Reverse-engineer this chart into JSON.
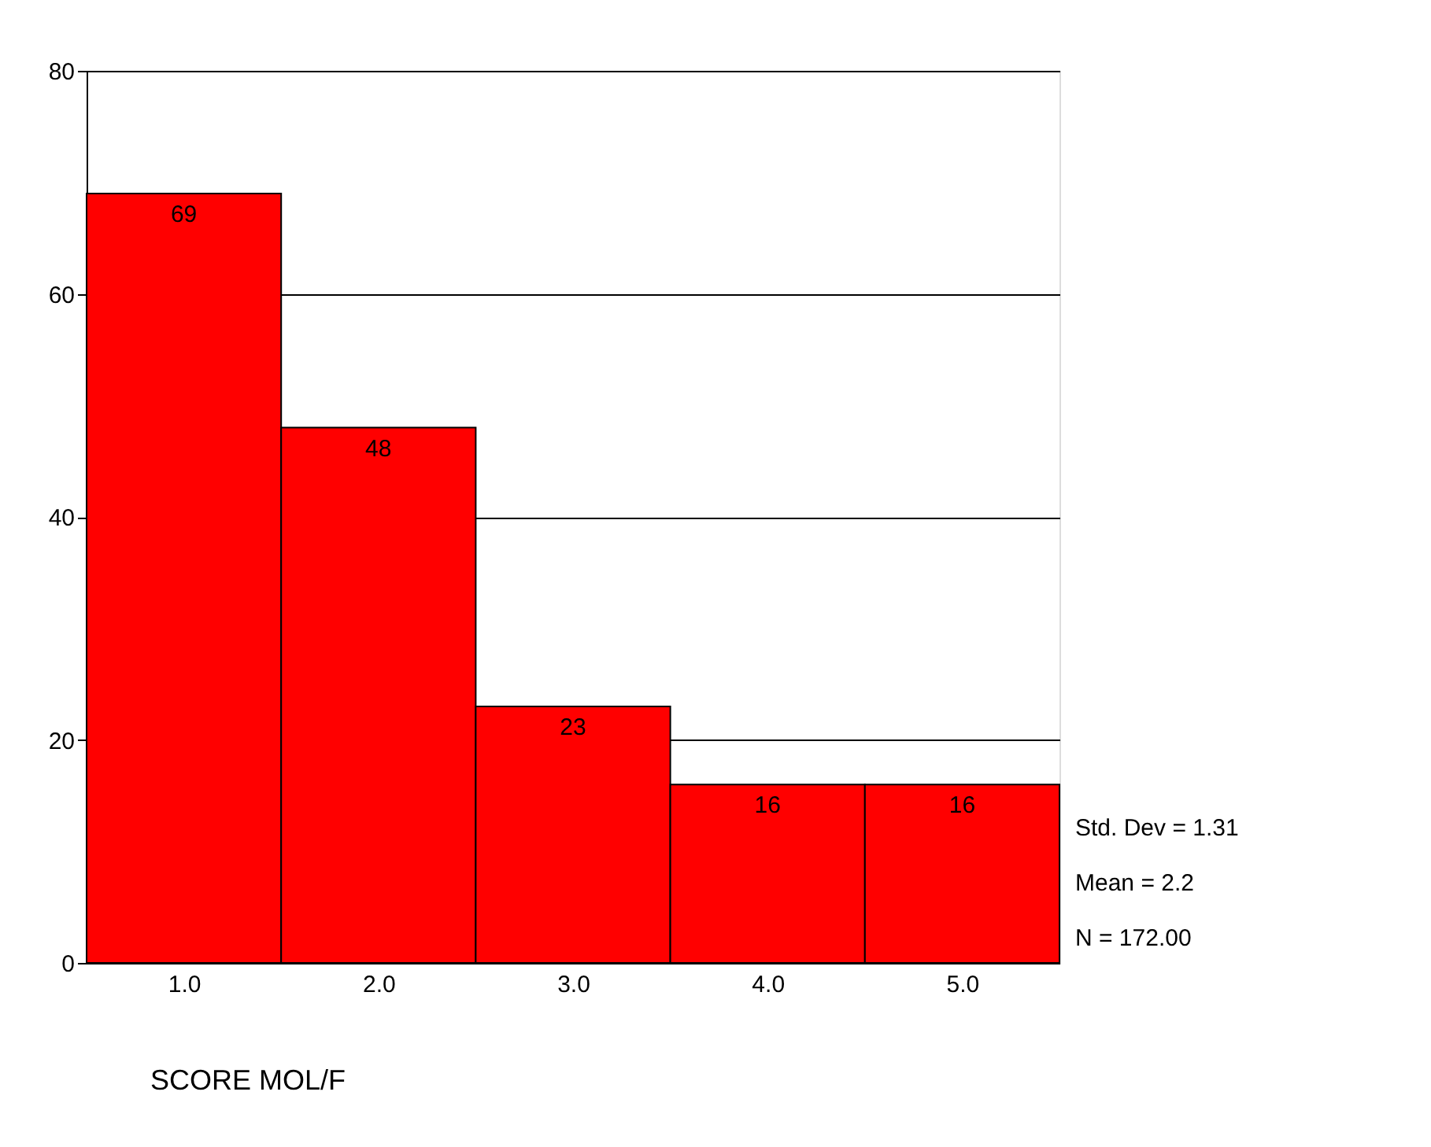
{
  "chart_data": {
    "type": "histogram",
    "xlabel": "SCORE MOL/F",
    "bins": [
      0.5,
      1.5,
      2.5,
      3.5,
      4.5,
      5.5
    ],
    "values": [
      69,
      48,
      23,
      16,
      16
    ],
    "color": "#ff0000",
    "xlim": [
      0.5,
      5.5
    ],
    "xticks": [
      {
        "value": 1,
        "label": "1.0"
      },
      {
        "value": 2,
        "label": "2.0"
      },
      {
        "value": 3,
        "label": "3.0"
      },
      {
        "value": 4,
        "label": "4.0"
      },
      {
        "value": 5,
        "label": "5.0"
      }
    ],
    "ylim": [
      0,
      80
    ],
    "yticks": [
      0,
      20,
      40,
      60,
      80
    ],
    "grid": "y",
    "data_labels": true,
    "annotations": [
      "Std. Dev = 1.31",
      "Mean = 2.2",
      "N = 172.00"
    ]
  }
}
